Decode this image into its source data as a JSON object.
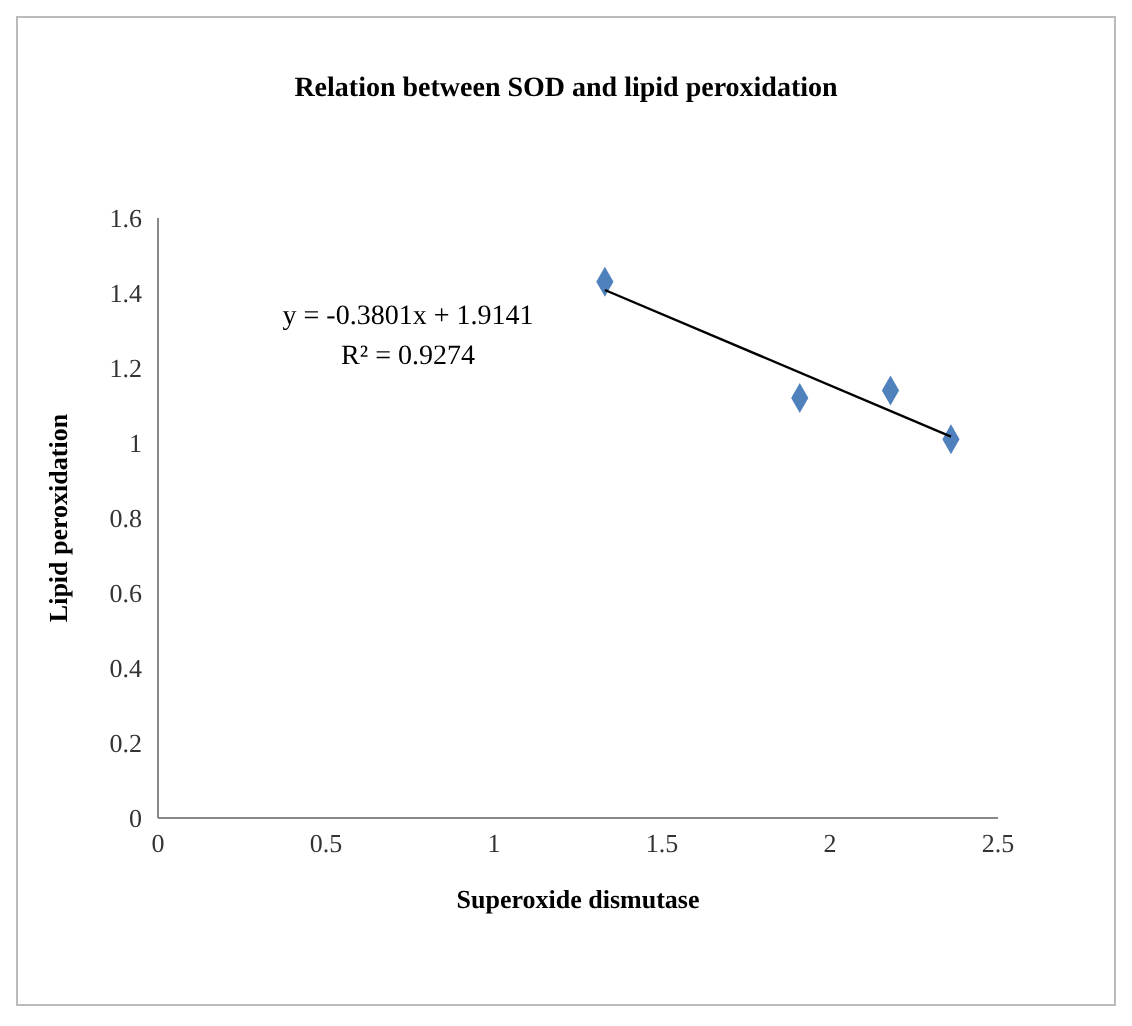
{
  "chart_data": {
    "type": "scatter",
    "title": "Relation between SOD and lipid peroxidation",
    "xlabel": "Superoxide dismutase",
    "ylabel": "Lipid peroxidation",
    "annotations": [
      "y = -0.3801x + 1.9141",
      "R² = 0.9274"
    ],
    "series": [
      {
        "color": "#4f81bd",
        "x": [
          1.33,
          1.91,
          2.18,
          2.36
        ],
        "values": [
          1.43,
          1.12,
          1.14,
          1.01
        ],
        "marker": "diamond"
      },
      {
        "type": "line",
        "color": "#000000",
        "x": [
          1.33,
          2.36
        ],
        "values": [
          1.408,
          1.017
        ],
        "marker": "none"
      }
    ],
    "xlim": [
      0,
      2.5
    ],
    "xticks": [
      0,
      0.5,
      1,
      1.5,
      2,
      2.5
    ],
    "ylim": [
      0,
      1.6
    ],
    "yticks": [
      0,
      0.2,
      0.4,
      0.6,
      0.8,
      1,
      1.2,
      1.4,
      1.6
    ],
    "grid": false
  }
}
